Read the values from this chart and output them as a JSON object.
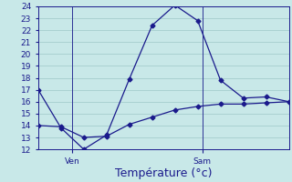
{
  "title": "Température (°c)",
  "background_color": "#c8e8e8",
  "grid_color": "#9ec8c8",
  "line_color": "#1a1a8c",
  "ylim": [
    12,
    24
  ],
  "yticks": [
    12,
    13,
    14,
    15,
    16,
    17,
    18,
    19,
    20,
    21,
    22,
    23,
    24
  ],
  "xlim": [
    0,
    11
  ],
  "x_upper": [
    0,
    1,
    2,
    3,
    4,
    5,
    6,
    7,
    8,
    9,
    10,
    11
  ],
  "y_upper": [
    17.0,
    13.8,
    12.0,
    13.2,
    17.9,
    22.4,
    24.1,
    22.8,
    17.8,
    16.3,
    16.4,
    16.0
  ],
  "x_lower": [
    0,
    1,
    2,
    3,
    4,
    5,
    6,
    7,
    8,
    9,
    10,
    11
  ],
  "y_lower": [
    14.0,
    13.9,
    13.0,
    13.1,
    14.1,
    14.7,
    15.3,
    15.6,
    15.8,
    15.8,
    15.9,
    16.0
  ],
  "ven_x": 1.5,
  "sam_x": 7.2,
  "xlabel_fontsize": 9,
  "tick_fontsize": 6.5,
  "marker_size": 2.5
}
